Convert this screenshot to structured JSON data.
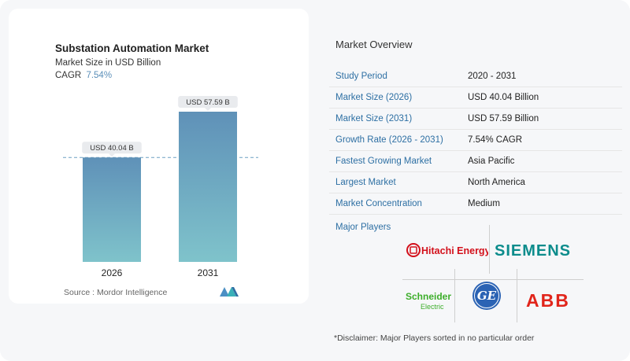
{
  "chart_data": {
    "type": "bar",
    "title": "Substation Automation Market",
    "subtitle": "Market Size in USD Billion",
    "cagr_label": "CAGR",
    "cagr_value": "7.54%",
    "categories": [
      "2026",
      "2031"
    ],
    "values": [
      40.04,
      57.59
    ],
    "value_labels": [
      "USD 40.04 B",
      "USD 57.59 B"
    ],
    "ylim": [
      0,
      57.59
    ],
    "colors": {
      "bar_top": "#5f91b8",
      "bar_bottom": "#7fc3cb",
      "reference_line": "#6fa0c2"
    }
  },
  "source": {
    "label": "Source :",
    "name": "Mordor Intelligence"
  },
  "overview": {
    "title": "Market Overview",
    "rows": [
      {
        "label": "Study Period",
        "value": "2020 - 2031"
      },
      {
        "label": "Market Size (2026)",
        "value": "USD 40.04 Billion"
      },
      {
        "label": "Market Size (2031)",
        "value": "USD 57.59 Billion"
      },
      {
        "label": "Growth Rate (2026 - 2031)",
        "value": "7.54% CAGR"
      },
      {
        "label": "Fastest Growing Market",
        "value": "Asia Pacific"
      },
      {
        "label": "Largest Market",
        "value": "North America"
      },
      {
        "label": "Market Concentration",
        "value": "Medium"
      }
    ]
  },
  "players": {
    "title": "Major Players",
    "names": [
      "Hitachi Energy",
      "SIEMENS",
      "Schneider Electric",
      "GE",
      "ABB"
    ],
    "logo_text": {
      "hitachi": "Hitachi Energy",
      "siemens": "SIEMENS",
      "schneider_top": "Schneider",
      "schneider_bottom": "Electric",
      "abb": "ABB"
    }
  },
  "disclaimer": "*Disclaimer: Major Players sorted in no particular order"
}
